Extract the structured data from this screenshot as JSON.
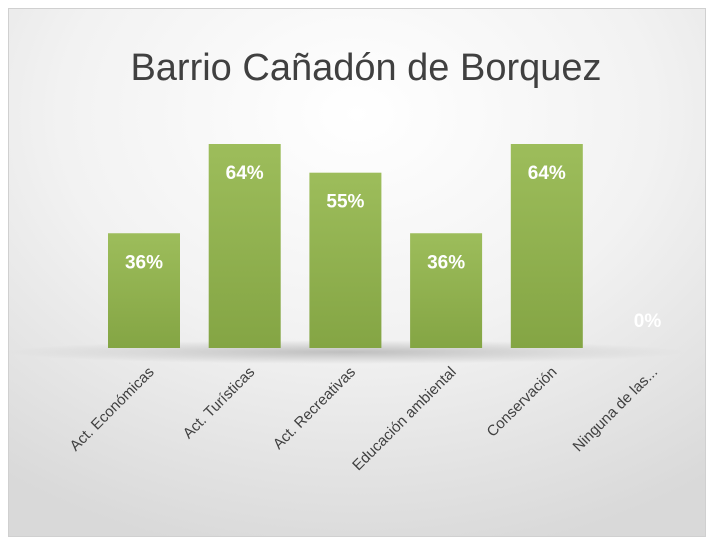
{
  "chart_data": {
    "type": "bar",
    "title": "Barrio Cañadón de Borquez",
    "categories": [
      "Act. Económicas",
      "Act. Turísticas",
      "Act. Recreativas",
      "Educación ambiental",
      "Conservación",
      "Ninguna de las..."
    ],
    "values": [
      36,
      64,
      55,
      36,
      64,
      0
    ],
    "value_labels": [
      "36%",
      "64%",
      "55%",
      "36%",
      "64%",
      "0%"
    ],
    "color": "#9bbb59"
  }
}
